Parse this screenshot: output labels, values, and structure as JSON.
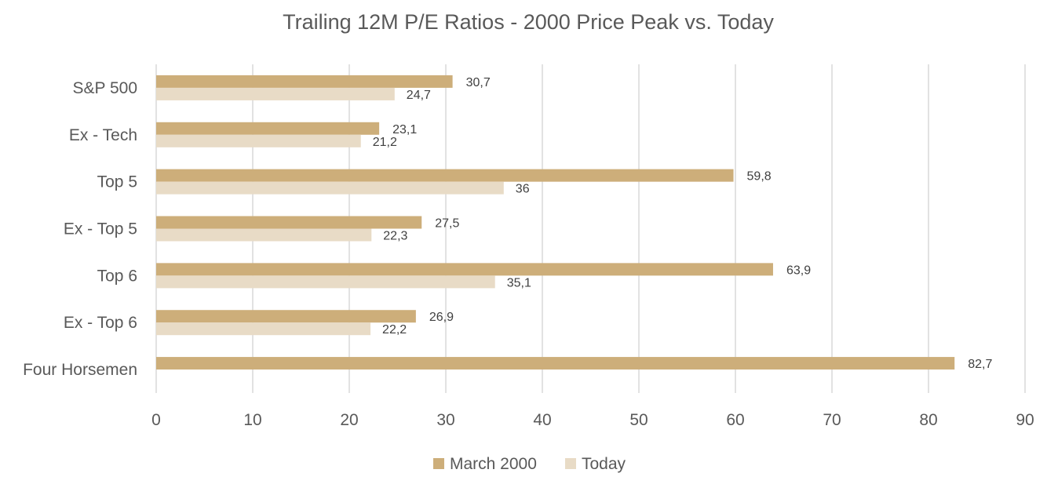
{
  "chart_data": {
    "type": "bar",
    "orientation": "horizontal",
    "title": "Trailing 12M P/E Ratios - 2000 Price Peak vs. Today",
    "categories": [
      "S&P 500",
      "Ex - Tech",
      "Top 5",
      "Ex - Top 5",
      "Top 6",
      "Ex - Top 6",
      "Four Horsemen"
    ],
    "series": [
      {
        "name": "March 2000",
        "color": "#cdae7a",
        "values": [
          30.7,
          23.1,
          59.8,
          27.5,
          63.9,
          26.9,
          82.7
        ],
        "labels": [
          "30,7",
          "23,1",
          "59,8",
          "27,5",
          "63,9",
          "26,9",
          "82,7"
        ]
      },
      {
        "name": "Today",
        "color": "#e8dbc6",
        "values": [
          24.7,
          21.2,
          36,
          22.3,
          35.1,
          22.2,
          null
        ],
        "labels": [
          "24,7",
          "21,2",
          "36",
          "22,3",
          "35,1",
          "22,2",
          null
        ]
      }
    ],
    "xlim": [
      0,
      90
    ],
    "xticks": [
      0,
      10,
      20,
      30,
      40,
      50,
      60,
      70,
      80,
      90
    ],
    "xlabel": "",
    "ylabel": "",
    "grid": "vertical",
    "legend_position": "bottom"
  }
}
